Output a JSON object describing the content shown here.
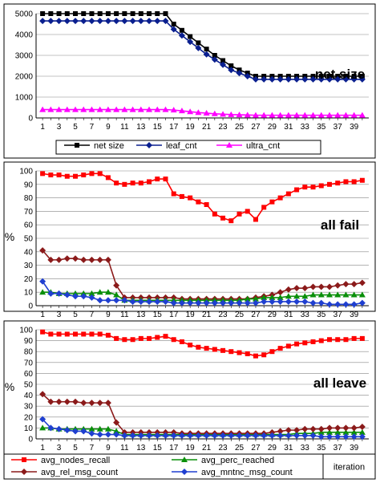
{
  "chart_data": [
    {
      "type": "line",
      "title": "net size",
      "ylabel": "",
      "xlabel": "",
      "ylim": [
        0,
        5000
      ],
      "yticks": [
        0,
        1000,
        2000,
        3000,
        4000,
        5000
      ],
      "x": [
        1,
        2,
        3,
        4,
        5,
        6,
        7,
        8,
        9,
        10,
        11,
        12,
        13,
        14,
        15,
        16,
        17,
        18,
        19,
        20,
        21,
        22,
        23,
        24,
        25,
        26,
        27,
        28,
        29,
        30,
        31,
        32,
        33,
        34,
        35,
        36,
        37,
        38,
        39,
        40
      ],
      "xtick_labels": [
        "1",
        "3",
        "5",
        "7",
        "9",
        "11",
        "13",
        "15",
        "17",
        "19",
        "21",
        "23",
        "25",
        "27",
        "29",
        "31",
        "33",
        "35",
        "37",
        "39"
      ],
      "legend_position": "bottom",
      "series": [
        {
          "name": "net size",
          "color": "#000000",
          "marker": "square",
          "values": [
            5000,
            5000,
            5000,
            5000,
            5000,
            5000,
            5000,
            5000,
            5000,
            5000,
            5000,
            5000,
            5000,
            5000,
            5000,
            5000,
            4500,
            4200,
            3900,
            3600,
            3300,
            3000,
            2750,
            2500,
            2300,
            2150,
            2000,
            2000,
            2000,
            2000,
            2000,
            2000,
            2000,
            2000,
            2000,
            2000,
            2000,
            2000,
            2000,
            2000
          ]
        },
        {
          "name": "leaf_cnt",
          "color": "#0a1f8f",
          "marker": "diamond",
          "values": [
            4650,
            4650,
            4650,
            4650,
            4650,
            4650,
            4650,
            4650,
            4650,
            4650,
            4650,
            4650,
            4650,
            4650,
            4650,
            4650,
            4250,
            3950,
            3650,
            3350,
            3050,
            2800,
            2550,
            2300,
            2150,
            2000,
            1850,
            1850,
            1850,
            1850,
            1850,
            1850,
            1850,
            1850,
            1850,
            1850,
            1850,
            1850,
            1850,
            1850
          ]
        },
        {
          "name": "ultra_cnt",
          "color": "#ff00ff",
          "marker": "triangle",
          "values": [
            400,
            400,
            400,
            400,
            400,
            400,
            400,
            400,
            400,
            400,
            400,
            400,
            400,
            400,
            400,
            400,
            380,
            340,
            300,
            260,
            230,
            200,
            180,
            160,
            150,
            140,
            130,
            130,
            130,
            130,
            130,
            130,
            130,
            130,
            130,
            130,
            130,
            130,
            130,
            130
          ]
        }
      ]
    },
    {
      "type": "line",
      "title": "all fail",
      "ylabel": "%",
      "xlabel": "",
      "ylim": [
        0,
        100
      ],
      "yticks": [
        0,
        10,
        20,
        30,
        40,
        50,
        60,
        70,
        80,
        90,
        100
      ],
      "x": [
        1,
        2,
        3,
        4,
        5,
        6,
        7,
        8,
        9,
        10,
        11,
        12,
        13,
        14,
        15,
        16,
        17,
        18,
        19,
        20,
        21,
        22,
        23,
        24,
        25,
        26,
        27,
        28,
        29,
        30,
        31,
        32,
        33,
        34,
        35,
        36,
        37,
        38,
        39,
        40
      ],
      "xtick_labels": [
        "1",
        "3",
        "5",
        "7",
        "9",
        "11",
        "13",
        "15",
        "17",
        "19",
        "21",
        "23",
        "25",
        "27",
        "29",
        "31",
        "33",
        "35",
        "37",
        "39"
      ],
      "series": [
        {
          "name": "avg_nodes_recall",
          "color": "#ff0000",
          "marker": "square",
          "values": [
            98,
            97,
            97,
            96,
            96,
            97,
            98,
            98,
            95,
            91,
            90,
            91,
            91,
            92,
            94,
            94,
            83,
            81,
            80,
            77,
            75,
            68,
            65,
            63,
            68,
            70,
            64,
            73,
            77,
            80,
            83,
            86,
            88,
            88,
            89,
            90,
            91,
            92,
            92,
            93
          ]
        },
        {
          "name": "avg_rel_msg_count",
          "color": "#8b1a1a",
          "marker": "diamond",
          "values": [
            41,
            34,
            34,
            35,
            35,
            34,
            34,
            34,
            34,
            15,
            6,
            6,
            6,
            6,
            6,
            6,
            6,
            5,
            5,
            5,
            5,
            5,
            5,
            5,
            5,
            5,
            6,
            7,
            8,
            10,
            12,
            13,
            13,
            14,
            14,
            14,
            15,
            16,
            16,
            17
          ]
        },
        {
          "name": "avg_perc_reached",
          "color": "#0a8f0a",
          "marker": "triangle",
          "values": [
            10,
            10,
            9,
            9,
            9,
            9,
            9,
            10,
            10,
            8,
            4,
            4,
            4,
            4,
            4,
            4,
            4,
            4,
            4,
            4,
            4,
            4,
            4,
            4,
            4,
            5,
            5,
            6,
            6,
            6,
            7,
            7,
            7,
            8,
            8,
            8,
            8,
            8,
            8,
            8
          ]
        },
        {
          "name": "avg_mntnc_msg_count",
          "color": "#1f3fd0",
          "marker": "diamond",
          "values": [
            18,
            9,
            9,
            8,
            7,
            7,
            6,
            4,
            4,
            4,
            4,
            3,
            3,
            3,
            3,
            3,
            2,
            2,
            2,
            2,
            2,
            2,
            2,
            2,
            2,
            2,
            2,
            3,
            3,
            3,
            3,
            3,
            3,
            2,
            2,
            1,
            1,
            1,
            1,
            2
          ]
        }
      ]
    },
    {
      "type": "line",
      "title": "all leave",
      "ylabel": "%",
      "xlabel": "iteration",
      "ylim": [
        0,
        100
      ],
      "yticks": [
        0,
        10,
        20,
        30,
        40,
        50,
        60,
        70,
        80,
        90,
        100
      ],
      "x": [
        1,
        2,
        3,
        4,
        5,
        6,
        7,
        8,
        9,
        10,
        11,
        12,
        13,
        14,
        15,
        16,
        17,
        18,
        19,
        20,
        21,
        22,
        23,
        24,
        25,
        26,
        27,
        28,
        29,
        30,
        31,
        32,
        33,
        34,
        35,
        36,
        37,
        38,
        39,
        40
      ],
      "xtick_labels": [
        "1",
        "3",
        "5",
        "7",
        "9",
        "11",
        "13",
        "15",
        "17",
        "19",
        "21",
        "23",
        "25",
        "27",
        "29",
        "31",
        "33",
        "35",
        "37",
        "39"
      ],
      "legend_position": "bottom",
      "series": [
        {
          "name": "avg_nodes_recall",
          "color": "#ff0000",
          "marker": "square",
          "values": [
            98,
            96,
            96,
            96,
            96,
            96,
            96,
            96,
            95,
            92,
            91,
            91,
            92,
            92,
            93,
            94,
            91,
            89,
            86,
            84,
            83,
            82,
            81,
            80,
            79,
            78,
            76,
            77,
            80,
            83,
            85,
            87,
            88,
            89,
            90,
            91,
            91,
            91,
            92,
            92
          ]
        },
        {
          "name": "avg_perc_reached",
          "color": "#0a8f0a",
          "marker": "triangle",
          "values": [
            10,
            10,
            9,
            9,
            9,
            9,
            9,
            9,
            9,
            7,
            4,
            4,
            4,
            4,
            4,
            4,
            4,
            4,
            4,
            4,
            4,
            4,
            4,
            4,
            4,
            4,
            4,
            4,
            4,
            4,
            4,
            5,
            5,
            5,
            6,
            6,
            6,
            6,
            6,
            6
          ]
        },
        {
          "name": "avg_rel_msg_count",
          "color": "#8b1a1a",
          "marker": "diamond",
          "values": [
            41,
            34,
            34,
            34,
            34,
            33,
            33,
            33,
            33,
            15,
            6,
            6,
            6,
            6,
            6,
            6,
            6,
            5,
            5,
            5,
            5,
            5,
            5,
            5,
            5,
            5,
            5,
            5,
            6,
            7,
            8,
            8,
            9,
            9,
            9,
            10,
            10,
            10,
            10,
            11
          ]
        },
        {
          "name": "avg_mntnc_msg_count",
          "color": "#1f3fd0",
          "marker": "diamond",
          "values": [
            18,
            10,
            9,
            8,
            7,
            7,
            5,
            4,
            4,
            4,
            3,
            3,
            3,
            3,
            3,
            3,
            3,
            3,
            3,
            3,
            3,
            3,
            3,
            3,
            3,
            3,
            3,
            3,
            3,
            3,
            3,
            3,
            3,
            3,
            2,
            2,
            2,
            2,
            2,
            2
          ]
        }
      ]
    }
  ]
}
